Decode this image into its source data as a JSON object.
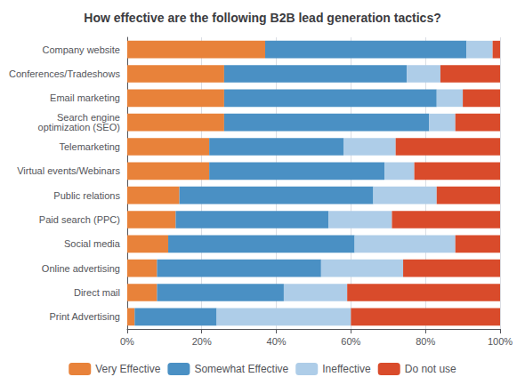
{
  "chart_data": {
    "type": "bar",
    "orientation": "horizontal",
    "stacked": true,
    "title": "How effective are the following B2B lead generation tactics?",
    "categories": [
      "Company website",
      "Conferences/Tradeshows",
      "Email marketing",
      "Search engine\noptimization (SEO)",
      "Telemarketing",
      "Virtual events/Webinars",
      "Public relations",
      "Paid search (PPC)",
      "Social media",
      "Online advertising",
      "Direct mail",
      "Print Advertising"
    ],
    "series": [
      {
        "name": "Very Effective",
        "color": "#E8823A",
        "values": [
          37,
          26,
          26,
          26,
          22,
          22,
          14,
          13,
          11,
          8,
          8,
          2
        ]
      },
      {
        "name": "Somewhat Effective",
        "color": "#4A90C4",
        "values": [
          54,
          49,
          57,
          55,
          36,
          47,
          52,
          41,
          50,
          44,
          34,
          22
        ]
      },
      {
        "name": "Ineffective",
        "color": "#AECDE8",
        "values": [
          7,
          9,
          7,
          7,
          14,
          8,
          17,
          17,
          27,
          22,
          17,
          36
        ]
      },
      {
        "name": "Do not use",
        "color": "#D94B2B",
        "values": [
          2,
          16,
          10,
          12,
          28,
          23,
          17,
          29,
          12,
          26,
          41,
          40
        ]
      }
    ],
    "xlim": [
      0,
      100
    ],
    "xticks": [
      {
        "value": 0,
        "label": "0%"
      },
      {
        "value": 20,
        "label": "20%"
      },
      {
        "value": 40,
        "label": "40%"
      },
      {
        "value": 60,
        "label": "60%"
      },
      {
        "value": 80,
        "label": "80%"
      },
      {
        "value": 100,
        "label": "100%"
      }
    ],
    "grid": true,
    "legend": "bottom"
  }
}
